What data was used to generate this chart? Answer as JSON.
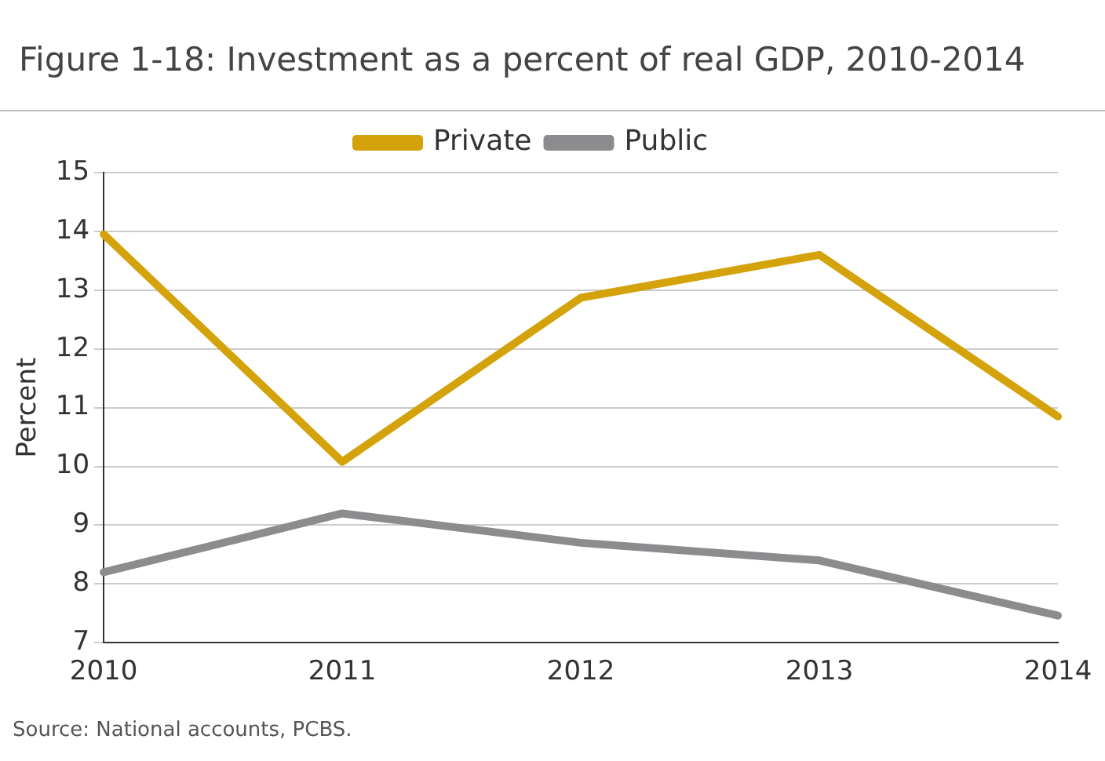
{
  "chart_data": {
    "type": "line",
    "title": "Figure 1-18: Investment as a percent of real GDP, 2010-2014",
    "ylabel": "Percent",
    "categories": [
      "2010",
      "2011",
      "2012",
      "2013",
      "2014"
    ],
    "series": [
      {
        "name": "Private",
        "color": "#d4a20a",
        "values": [
          13.95,
          10.08,
          12.87,
          13.6,
          10.85
        ]
      },
      {
        "name": "Public",
        "color": "#8c8c8f",
        "values": [
          8.2,
          9.2,
          8.7,
          8.4,
          7.46
        ]
      }
    ],
    "ylim": [
      7,
      15
    ],
    "yticks": [
      7,
      8,
      9,
      10,
      11,
      12,
      13,
      14,
      15
    ],
    "grid": "y",
    "legend": "top",
    "marker": "none",
    "line_style": "solid",
    "annotations": [
      "Source: National accounts, PCBS."
    ]
  }
}
